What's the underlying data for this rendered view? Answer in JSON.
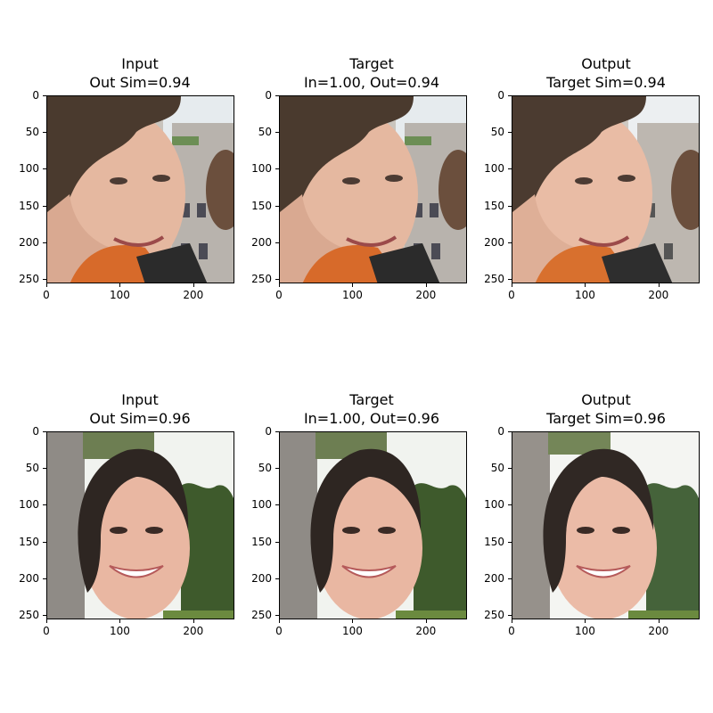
{
  "rows": [
    {
      "panels": [
        {
          "title1": "Input",
          "title2": "Out Sim=0.94"
        },
        {
          "title1": "Target",
          "title2": "In=1.00, Out=0.94"
        },
        {
          "title1": "Output",
          "title2": "Target Sim=0.94"
        }
      ],
      "subject": "man"
    },
    {
      "panels": [
        {
          "title1": "Input",
          "title2": "Out Sim=0.96"
        },
        {
          "title1": "Target",
          "title2": "In=1.00, Out=0.96"
        },
        {
          "title1": "Output",
          "title2": "Target Sim=0.96"
        }
      ],
      "subject": "woman"
    }
  ],
  "axes": {
    "y_ticks": [
      "0",
      "50",
      "100",
      "150",
      "200",
      "250"
    ],
    "x_ticks": [
      "0",
      "100",
      "200"
    ]
  },
  "colors": {
    "man_bg_sky": "#e6ebee",
    "man_buildings": "#b8b3ad",
    "man_skin": "#e5b8a0",
    "man_hair": "#4a3a2e",
    "man_jacket": "#d76a2a",
    "woman_bg_sky": "#f1f3ef",
    "woman_trees": "#3e5a2c",
    "woman_skin": "#e9b7a2",
    "woman_hair": "#2e2622"
  }
}
